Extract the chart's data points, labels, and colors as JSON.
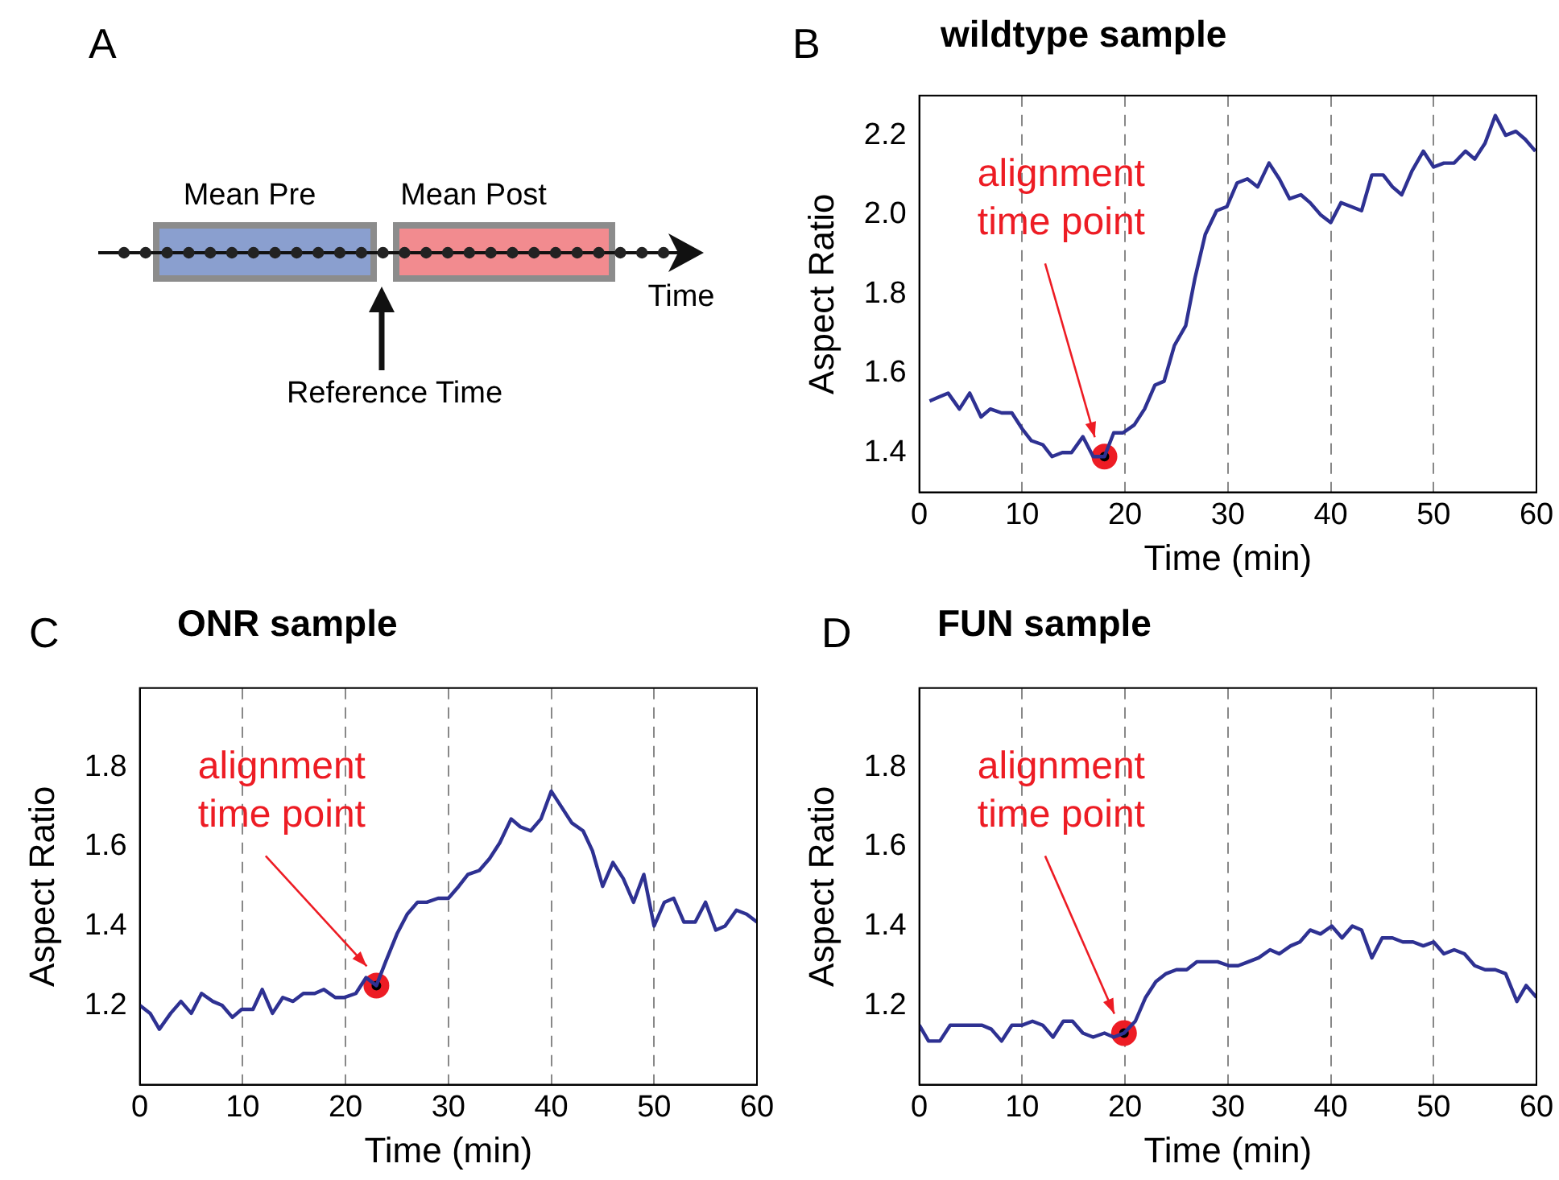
{
  "chart_data": [
    {
      "type": "other",
      "annotations": [
        "A",
        "Mean Pre",
        "Mean Post",
        "Time",
        "Reference Time"
      ]
    },
    {
      "type": "line",
      "title": "wildtype sample",
      "xlabel": "Time (min)",
      "ylabel": "Aspect Ratio",
      "xlim": [
        0,
        60
      ],
      "ylim": [
        1.3,
        2.3
      ],
      "xticks": [
        0,
        10,
        20,
        30,
        40,
        50,
        60
      ],
      "yticks": [
        1.4,
        1.6,
        1.8,
        {
          "value": 2,
          "label": "2.0"
        },
        2.2
      ],
      "grid": "x",
      "legend": false,
      "annotations": [
        "B",
        "alignment time point"
      ],
      "series": [
        {
          "type": "line",
          "color": "#2e3192",
          "x": [
            1,
            1.9,
            2.8,
            3.9,
            4.9,
            6,
            6.9,
            8,
            9,
            10,
            10.9,
            12,
            12.9,
            13.9,
            14.8,
            15.9,
            16.9,
            18,
            18.9,
            19.8,
            20.9,
            21.9,
            22.9,
            23.8,
            24.8,
            25.9,
            26.8,
            27.8,
            28.9,
            29.9,
            30.9,
            31.9,
            32.9,
            34,
            35,
            36,
            37.1,
            38,
            39,
            40,
            41,
            42,
            43,
            44,
            45.1,
            46,
            46.9,
            47.9,
            49,
            50,
            51,
            52,
            53.1,
            54,
            55,
            56,
            57,
            58,
            58.9,
            59.9
          ],
          "values": [
            1.53,
            1.54,
            1.55,
            1.51,
            1.55,
            1.49,
            1.51,
            1.5,
            1.5,
            1.46,
            1.43,
            1.42,
            1.39,
            1.4,
            1.4,
            1.44,
            1.39,
            1.39,
            1.45,
            1.45,
            1.47,
            1.51,
            1.57,
            1.58,
            1.67,
            1.72,
            1.84,
            1.95,
            2.01,
            2.02,
            2.08,
            2.09,
            2.07,
            2.13,
            2.09,
            2.04,
            2.05,
            2.03,
            2,
            1.98,
            2.03,
            2.02,
            2.01,
            2.1,
            2.1,
            2.07,
            2.05,
            2.11,
            2.16,
            2.12,
            2.13,
            2.13,
            2.16,
            2.14,
            2.18,
            2.25,
            2.2,
            2.21,
            2.19,
            2.16
          ]
        },
        {
          "type": "scatter",
          "color": "#ed1c24",
          "x": [
            18
          ],
          "values": [
            1.39
          ]
        }
      ]
    },
    {
      "type": "line",
      "title": "ONR sample",
      "xlabel": "Time (min)",
      "ylabel": "Aspect Ratio",
      "xlim": [
        0,
        60
      ],
      "ylim": [
        1,
        2
      ],
      "xticks": [
        0,
        10,
        20,
        30,
        40,
        50,
        60
      ],
      "yticks": [
        1.2,
        1.4,
        1.6,
        1.8
      ],
      "grid": "x",
      "legend": false,
      "annotations": [
        "C",
        "alignment time point"
      ],
      "series": [
        {
          "type": "line",
          "color": "#2e3192",
          "x": [
            0,
            1,
            1.9,
            3,
            4,
            5,
            6,
            7.1,
            8,
            9,
            9.9,
            11,
            11.9,
            12.9,
            13.9,
            14.9,
            15.9,
            17,
            17.9,
            19,
            19.9,
            21,
            22,
            23,
            23.9,
            25,
            26,
            27,
            27.9,
            29,
            30,
            31,
            31.9,
            33,
            34,
            35,
            36.1,
            37,
            38,
            39,
            40,
            41,
            42,
            43.1,
            44,
            45,
            46,
            47,
            48,
            49,
            50,
            51,
            51.9,
            52.9,
            54,
            55,
            56,
            56.9,
            58,
            59,
            60
          ],
          "values": [
            1.2,
            1.18,
            1.14,
            1.18,
            1.21,
            1.18,
            1.23,
            1.21,
            1.2,
            1.17,
            1.19,
            1.19,
            1.24,
            1.18,
            1.22,
            1.21,
            1.23,
            1.23,
            1.24,
            1.22,
            1.22,
            1.23,
            1.27,
            1.25,
            1.31,
            1.38,
            1.43,
            1.46,
            1.46,
            1.47,
            1.47,
            1.5,
            1.53,
            1.54,
            1.57,
            1.61,
            1.67,
            1.65,
            1.64,
            1.67,
            1.74,
            1.7,
            1.66,
            1.64,
            1.59,
            1.5,
            1.56,
            1.52,
            1.46,
            1.53,
            1.4,
            1.46,
            1.47,
            1.41,
            1.41,
            1.46,
            1.39,
            1.4,
            1.44,
            1.43,
            1.41
          ]
        },
        {
          "type": "scatter",
          "color": "#ed1c24",
          "x": [
            23
          ],
          "values": [
            1.25
          ]
        }
      ]
    },
    {
      "type": "line",
      "title": "FUN sample",
      "xlabel": "Time (min)",
      "ylabel": "Aspect Ratio",
      "xlim": [
        0,
        60
      ],
      "ylim": [
        1,
        2
      ],
      "xticks": [
        0,
        10,
        20,
        30,
        40,
        50,
        60
      ],
      "yticks": [
        1.2,
        1.4,
        1.6,
        1.8
      ],
      "grid": "x",
      "legend": false,
      "annotations": [
        "D",
        "alignment time point"
      ],
      "series": [
        {
          "type": "line",
          "color": "#2e3192",
          "x": [
            0,
            0.9,
            2,
            3,
            4.1,
            5.2,
            6.1,
            7,
            8,
            9,
            10,
            11,
            12,
            13,
            14,
            14.9,
            15.9,
            16.9,
            18,
            18.9,
            19.9,
            21,
            22,
            23,
            24,
            25,
            26,
            27,
            28,
            29,
            30.1,
            31,
            32,
            33,
            34.1,
            35,
            36.1,
            37,
            38,
            39,
            40.1,
            41.1,
            42.1,
            43,
            44,
            45,
            46,
            47,
            48,
            49,
            50,
            51,
            52,
            53,
            54,
            55,
            56,
            57,
            58.1,
            59,
            60
          ],
          "values": [
            1.15,
            1.11,
            1.11,
            1.15,
            1.15,
            1.15,
            1.15,
            1.14,
            1.11,
            1.15,
            1.15,
            1.16,
            1.15,
            1.12,
            1.16,
            1.16,
            1.13,
            1.12,
            1.13,
            1.12,
            1.13,
            1.16,
            1.22,
            1.26,
            1.28,
            1.29,
            1.29,
            1.31,
            1.31,
            1.31,
            1.3,
            1.3,
            1.31,
            1.32,
            1.34,
            1.33,
            1.35,
            1.36,
            1.39,
            1.38,
            1.4,
            1.37,
            1.4,
            1.39,
            1.32,
            1.37,
            1.37,
            1.36,
            1.36,
            1.35,
            1.36,
            1.33,
            1.34,
            1.33,
            1.3,
            1.29,
            1.29,
            1.28,
            1.21,
            1.25,
            1.22
          ]
        },
        {
          "type": "scatter",
          "color": "#ed1c24",
          "x": [
            19.9
          ],
          "values": [
            1.13
          ]
        }
      ]
    }
  ]
}
